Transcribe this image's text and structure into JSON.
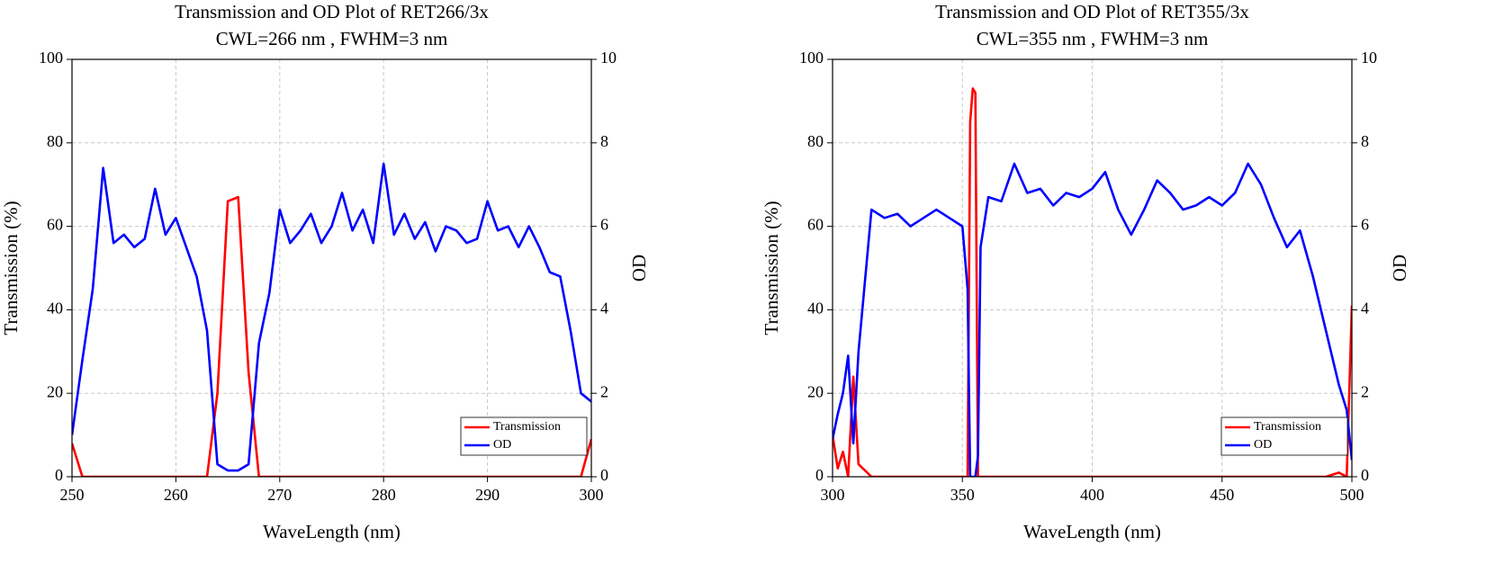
{
  "chart_data": [
    {
      "type": "line",
      "title": "Transmission and OD Plot of RET266/3x",
      "subtitle": "CWL=266 nm , FWHM=3 nm",
      "x_label": "WaveLength (nm)",
      "y_label": "Transmission (%)",
      "y2_label": "OD",
      "x": [
        250,
        251,
        252,
        253,
        254,
        255,
        256,
        257,
        258,
        259,
        260,
        261,
        262,
        263,
        264,
        265,
        266,
        267,
        268,
        269,
        270,
        271,
        272,
        273,
        274,
        275,
        276,
        277,
        278,
        279,
        280,
        281,
        282,
        283,
        284,
        285,
        286,
        287,
        288,
        289,
        290,
        291,
        292,
        293,
        294,
        295,
        296,
        297,
        298,
        299,
        300
      ],
      "series": [
        {
          "name": "Transmission",
          "color": "#ff0000",
          "values": [
            8,
            0,
            0,
            0,
            0,
            0,
            0,
            0,
            0,
            0,
            0,
            0,
            0,
            0,
            20,
            66,
            67,
            25,
            0,
            0,
            0,
            0,
            0,
            0,
            0,
            0,
            0,
            0,
            0,
            0,
            0,
            0,
            0,
            0,
            0,
            0,
            0,
            0,
            0,
            0,
            0,
            0,
            0,
            0,
            0,
            0,
            0,
            0,
            0,
            0,
            9
          ]
        },
        {
          "name": "OD",
          "color": "#0000ff",
          "axis": "y2",
          "values": [
            1.0,
            2.8,
            4.5,
            7.4,
            5.6,
            5.8,
            5.5,
            5.7,
            6.9,
            5.8,
            6.2,
            5.5,
            4.8,
            3.5,
            0.3,
            0.15,
            0.15,
            0.3,
            3.2,
            4.4,
            6.4,
            5.6,
            5.9,
            6.3,
            5.6,
            6.0,
            6.8,
            5.9,
            6.4,
            5.6,
            7.5,
            5.8,
            6.3,
            5.7,
            6.1,
            5.4,
            6.0,
            5.9,
            5.6,
            5.7,
            6.6,
            5.9,
            6.0,
            5.5,
            6.0,
            5.5,
            4.9,
            4.8,
            3.5,
            2.0,
            1.8
          ]
        }
      ],
      "xlim": [
        250,
        300
      ],
      "xticks": [
        250,
        260,
        270,
        280,
        290,
        300
      ],
      "ylim": [
        0,
        100
      ],
      "yticks": [
        0,
        20,
        40,
        60,
        80,
        100
      ],
      "y2lim": [
        0,
        10
      ],
      "y2ticks": [
        0,
        2,
        4,
        6,
        8,
        10
      ],
      "grid": true,
      "legend": "lower right"
    },
    {
      "type": "line",
      "title": "Transmission and OD Plot of RET355/3x",
      "subtitle": "CWL=355 nm , FWHM=3 nm",
      "x_label": "WaveLength (nm)",
      "y_label": "Transmission (%)",
      "y2_label": "OD",
      "x": [
        300,
        302,
        304,
        306,
        308,
        310,
        315,
        320,
        325,
        330,
        335,
        340,
        345,
        350,
        352,
        353,
        354,
        355,
        356,
        357,
        360,
        365,
        370,
        375,
        380,
        385,
        390,
        395,
        400,
        405,
        410,
        415,
        420,
        425,
        430,
        435,
        440,
        445,
        450,
        455,
        460,
        465,
        470,
        475,
        480,
        485,
        490,
        495,
        498,
        500
      ],
      "series": [
        {
          "name": "Transmission",
          "color": "#ff0000",
          "values": [
            10,
            2,
            6,
            0,
            24,
            3,
            0,
            0,
            0,
            0,
            0,
            0,
            0,
            0,
            0,
            85,
            93,
            92,
            0,
            0,
            0,
            0,
            0,
            0,
            0,
            0,
            0,
            0,
            0,
            0,
            0,
            0,
            0,
            0,
            0,
            0,
            0,
            0,
            0,
            0,
            0,
            0,
            0,
            0,
            0,
            0,
            0,
            1,
            0,
            41
          ]
        },
        {
          "name": "OD",
          "color": "#0000ff",
          "axis": "y2",
          "values": [
            0.9,
            1.5,
            2.0,
            2.9,
            0.8,
            3.0,
            6.4,
            6.2,
            6.3,
            6.0,
            6.2,
            6.4,
            6.2,
            6.0,
            4.5,
            0,
            0,
            0,
            0.5,
            5.5,
            6.7,
            6.6,
            7.5,
            6.8,
            6.9,
            6.5,
            6.8,
            6.7,
            6.9,
            7.3,
            6.4,
            5.8,
            6.4,
            7.1,
            6.8,
            6.4,
            6.5,
            6.7,
            6.5,
            6.8,
            7.5,
            7.0,
            6.2,
            5.5,
            5.9,
            4.8,
            3.5,
            2.2,
            1.6,
            0.4
          ]
        }
      ],
      "xlim": [
        300,
        500
      ],
      "xticks": [
        300,
        350,
        400,
        450,
        500
      ],
      "ylim": [
        0,
        100
      ],
      "yticks": [
        0,
        20,
        40,
        60,
        80,
        100
      ],
      "y2lim": [
        0,
        10
      ],
      "y2ticks": [
        0,
        2,
        4,
        6,
        8,
        10
      ],
      "grid": true,
      "legend": "lower right"
    }
  ]
}
